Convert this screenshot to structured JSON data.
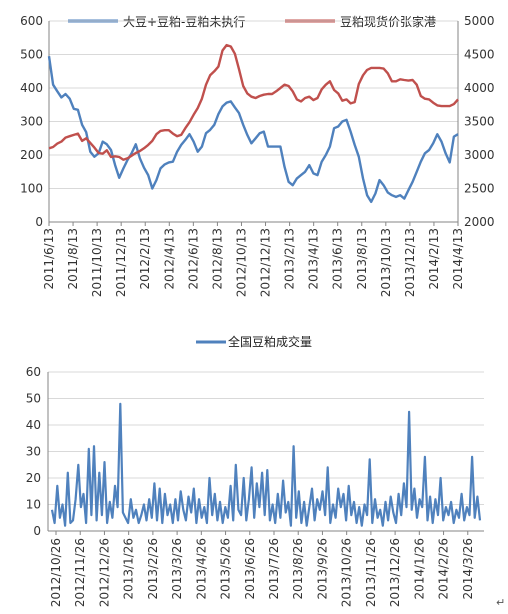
{
  "chart_data": [
    {
      "type": "line",
      "x_tick_labels": [
        "2011/6/13",
        "2011/8/13",
        "2011/10/13",
        "2011/12/13",
        "2012/2/13",
        "2012/4/13",
        "2012/6/13",
        "2012/8/13",
        "2012/10/13",
        "2012/12/13",
        "2013/2/13",
        "2013/4/13",
        "2013/6/13",
        "2013/8/13",
        "2013/10/13",
        "2013/12/13",
        "2014/2/13",
        "2014/4/13"
      ],
      "y_left": {
        "ticks": [
          "0",
          "100",
          "200",
          "300",
          "400",
          "500",
          "600"
        ],
        "ylim": [
          0,
          600
        ]
      },
      "y_right": {
        "ticks": [
          "2000",
          "2500",
          "3000",
          "3500",
          "4000",
          "4500",
          "5000"
        ],
        "ylim": [
          2000,
          5000
        ]
      },
      "grid": true,
      "legend_position": "top",
      "series": [
        {
          "name": "大豆+豆粕-豆粕未执行",
          "axis": "left",
          "color": "#4F81BD",
          "values": [
            495,
            410,
            390,
            372,
            382,
            368,
            338,
            335,
            290,
            268,
            210,
            195,
            205,
            240,
            232,
            215,
            170,
            132,
            160,
            185,
            205,
            232,
            190,
            162,
            140,
            100,
            125,
            160,
            172,
            178,
            180,
            210,
            230,
            245,
            262,
            240,
            210,
            225,
            265,
            275,
            290,
            322,
            345,
            356,
            360,
            342,
            325,
            290,
            260,
            235,
            250,
            265,
            270,
            225,
            225,
            225,
            225,
            165,
            120,
            110,
            130,
            140,
            150,
            170,
            145,
            140,
            180,
            200,
            225,
            280,
            285,
            300,
            305,
            270,
            230,
            195,
            130,
            80,
            60,
            85,
            125,
            110,
            88,
            80,
            75,
            80,
            70,
            95,
            120,
            150,
            180,
            205,
            215,
            235,
            262,
            240,
            205,
            178,
            255,
            262
          ]
        },
        {
          "name": "豆粕现货价张家港",
          "axis": "right",
          "color": "#C0504D",
          "values": [
            3100,
            3120,
            3170,
            3200,
            3260,
            3280,
            3300,
            3320,
            3210,
            3250,
            3180,
            3110,
            3030,
            3020,
            3070,
            2970,
            2980,
            2970,
            2930,
            2950,
            2990,
            3030,
            3060,
            3100,
            3150,
            3210,
            3310,
            3360,
            3370,
            3370,
            3320,
            3280,
            3300,
            3400,
            3490,
            3600,
            3700,
            3840,
            4050,
            4190,
            4250,
            4320,
            4560,
            4640,
            4620,
            4510,
            4280,
            4030,
            3920,
            3870,
            3850,
            3880,
            3900,
            3910,
            3910,
            3950,
            4000,
            4050,
            4030,
            3950,
            3830,
            3800,
            3850,
            3870,
            3820,
            3850,
            3980,
            4050,
            4100,
            3970,
            3920,
            3810,
            3830,
            3770,
            3790,
            4060,
            4190,
            4270,
            4300,
            4300,
            4300,
            4290,
            4220,
            4100,
            4100,
            4130,
            4120,
            4110,
            4120,
            4050,
            3880,
            3840,
            3830,
            3780,
            3740,
            3730,
            3730,
            3730,
            3760,
            3830
          ]
        }
      ]
    },
    {
      "type": "line",
      "title": "全国豆粕成交量",
      "x_tick_labels": [
        "2012/10/26",
        "2012/11/26",
        "2012/12/26",
        "2013/1/26",
        "2013/2/26",
        "2013/3/26",
        "2013/4/26",
        "2013/5/26",
        "2013/6/26",
        "2013/7/26",
        "2013/8/26",
        "2013/9/26",
        "2013/10/26",
        "2013/11/26",
        "2013/12/26",
        "2014/1/26",
        "2014/2/26",
        "2014/3/26"
      ],
      "y_ticks": [
        "0",
        "10",
        "20",
        "30",
        "40",
        "50",
        "60"
      ],
      "ylim": [
        0,
        60
      ],
      "grid": true,
      "legend_position": "top",
      "series": [
        {
          "name": "全国豆粕成交量",
          "color": "#4F81BD",
          "values": [
            8,
            3,
            17,
            5,
            10,
            2,
            22,
            3,
            4,
            12,
            25,
            9,
            14,
            3,
            31,
            6,
            32,
            4,
            22,
            6,
            26,
            3,
            11,
            5,
            17,
            9,
            48,
            7,
            5,
            3,
            12,
            5,
            8,
            3,
            6,
            10,
            4,
            12,
            5,
            18,
            4,
            16,
            3,
            14,
            6,
            10,
            3,
            12,
            4,
            15,
            8,
            4,
            13,
            7,
            16,
            3,
            12,
            5,
            9,
            3,
            20,
            6,
            14,
            4,
            11,
            3,
            9,
            5,
            17,
            4,
            25,
            8,
            6,
            20,
            4,
            12,
            24,
            5,
            18,
            9,
            22,
            6,
            23,
            4,
            10,
            3,
            14,
            5,
            19,
            7,
            11,
            2,
            32,
            5,
            15,
            3,
            11,
            2,
            9,
            16,
            4,
            12,
            8,
            15,
            6,
            24,
            3,
            10,
            5,
            16,
            9,
            14,
            4,
            17,
            6,
            11,
            3,
            9,
            2,
            10,
            6,
            27,
            3,
            12,
            5,
            8,
            2,
            11,
            4,
            13,
            7,
            3,
            14,
            6,
            18,
            9,
            45,
            8,
            16,
            5,
            12,
            9,
            28,
            4,
            13,
            3,
            12,
            6,
            20,
            4,
            9,
            6,
            11,
            3,
            8,
            5,
            14,
            4,
            9,
            6,
            28,
            5,
            13,
            4
          ]
        }
      ]
    }
  ]
}
